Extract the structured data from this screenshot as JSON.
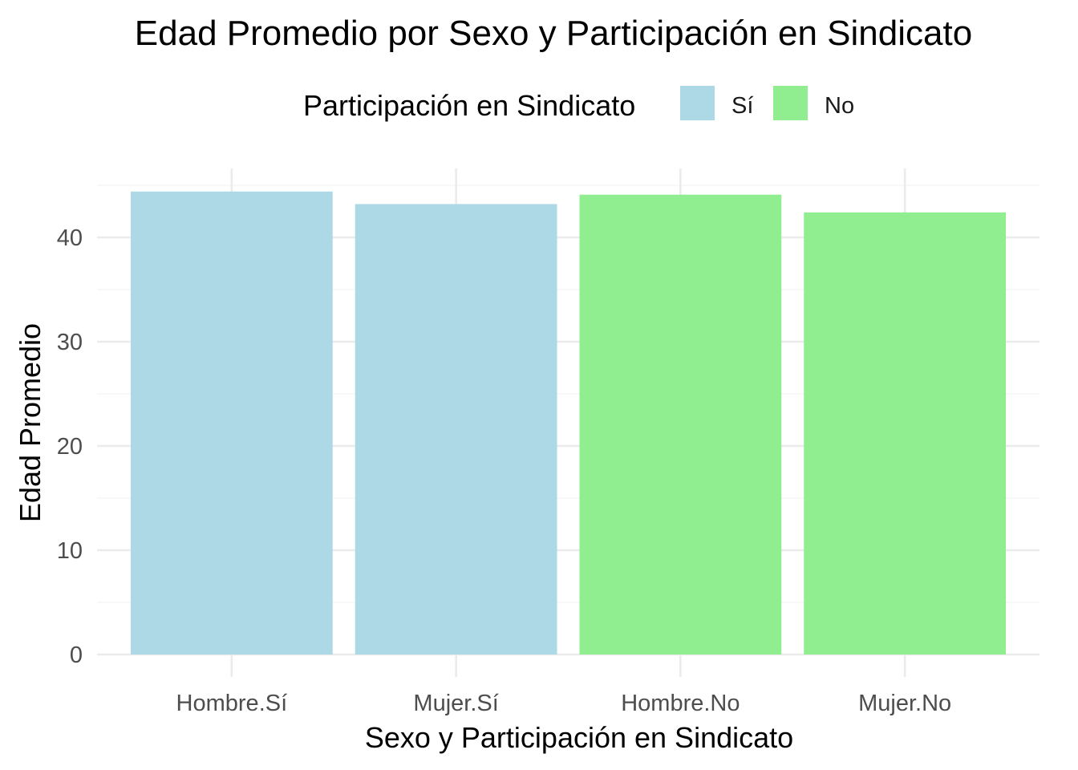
{
  "chart_data": {
    "type": "bar",
    "title": "Edad Promedio por Sexo y Participación en Sindicato",
    "xlabel": "Sexo y Participación en Sindicato",
    "ylabel": "Edad Promedio",
    "categories": [
      "Hombre.Sí",
      "Mujer.Sí",
      "Hombre.No",
      "Mujer.No"
    ],
    "values": [
      44.4,
      43.2,
      44.1,
      42.4
    ],
    "bar_groups": [
      "Sí",
      "Sí",
      "No",
      "No"
    ],
    "yticks": [
      0,
      10,
      20,
      30,
      40
    ],
    "ylim": [
      0,
      45
    ],
    "grid": true,
    "legend": {
      "title": "Participación en Sindicato",
      "position": "top",
      "items": [
        {
          "label": "Sí",
          "color": "#ADD8E6"
        },
        {
          "label": "No",
          "color": "#90EE90"
        }
      ]
    }
  }
}
